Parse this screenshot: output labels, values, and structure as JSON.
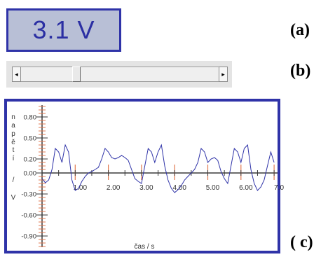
{
  "voltage_display": {
    "value": "3.1 V"
  },
  "labels": {
    "a": "(a)",
    "b": "(b)",
    "c": "( c)"
  },
  "slider": {
    "left_arrow": "◂",
    "right_arrow": "▸",
    "value_fraction": 0.27
  },
  "chart_data": {
    "type": "line",
    "ylabel_letters": [
      "n",
      "a",
      "p",
      "ě",
      "t",
      "í",
      "/",
      "V"
    ],
    "xlabel": "čas / s",
    "x_ticks": [
      "1.00",
      "2.00",
      "3.00",
      "4.00",
      "5.00",
      "6.00",
      "7.0"
    ],
    "y_ticks": [
      "0.80",
      "0.50",
      "0.20",
      "0.00",
      "-0.30",
      "-0.60",
      "-0.90"
    ],
    "xlim": [
      0,
      7.0
    ],
    "ylim": [
      -1.1,
      1.0
    ],
    "series": [
      {
        "color": "#2f33a8",
        "x": [
          0.0,
          0.1,
          0.2,
          0.3,
          0.4,
          0.5,
          0.6,
          0.7,
          0.8,
          0.9,
          1.0,
          1.1,
          1.2,
          1.3,
          1.4,
          1.5,
          1.6,
          1.7,
          1.8,
          1.9,
          2.0,
          2.1,
          2.2,
          2.3,
          2.4,
          2.5,
          2.6,
          2.7,
          2.8,
          2.9,
          3.0,
          3.1,
          3.2,
          3.3,
          3.4,
          3.5,
          3.6,
          3.7,
          3.8,
          3.9,
          4.0,
          4.1,
          4.2,
          4.3,
          4.4,
          4.5,
          4.6,
          4.7,
          4.8,
          4.9,
          5.0,
          5.1,
          5.2,
          5.3,
          5.4,
          5.5,
          5.6,
          5.7,
          5.8,
          5.9,
          6.0,
          6.1,
          6.2,
          6.3,
          6.4,
          6.5,
          6.6,
          6.7,
          6.8,
          6.9,
          7.0
        ],
        "y": [
          -0.08,
          -0.14,
          -0.1,
          0.05,
          0.35,
          0.3,
          0.15,
          0.4,
          0.3,
          -0.1,
          -0.25,
          -0.22,
          -0.12,
          -0.05,
          0.0,
          0.02,
          0.05,
          0.08,
          0.2,
          0.35,
          0.3,
          0.22,
          0.2,
          0.22,
          0.25,
          0.22,
          0.18,
          0.05,
          -0.08,
          -0.12,
          -0.15,
          0.1,
          0.35,
          0.3,
          0.15,
          0.3,
          0.4,
          0.1,
          -0.1,
          -0.22,
          -0.28,
          -0.24,
          -0.18,
          -0.1,
          -0.05,
          0.0,
          0.05,
          0.15,
          0.35,
          0.3,
          0.15,
          0.2,
          0.22,
          0.18,
          0.02,
          -0.08,
          -0.15,
          0.1,
          0.35,
          0.3,
          0.15,
          0.35,
          0.4,
          0.05,
          -0.15,
          -0.25,
          -0.2,
          -0.1,
          0.1,
          0.3,
          0.15
        ]
      }
    ]
  }
}
